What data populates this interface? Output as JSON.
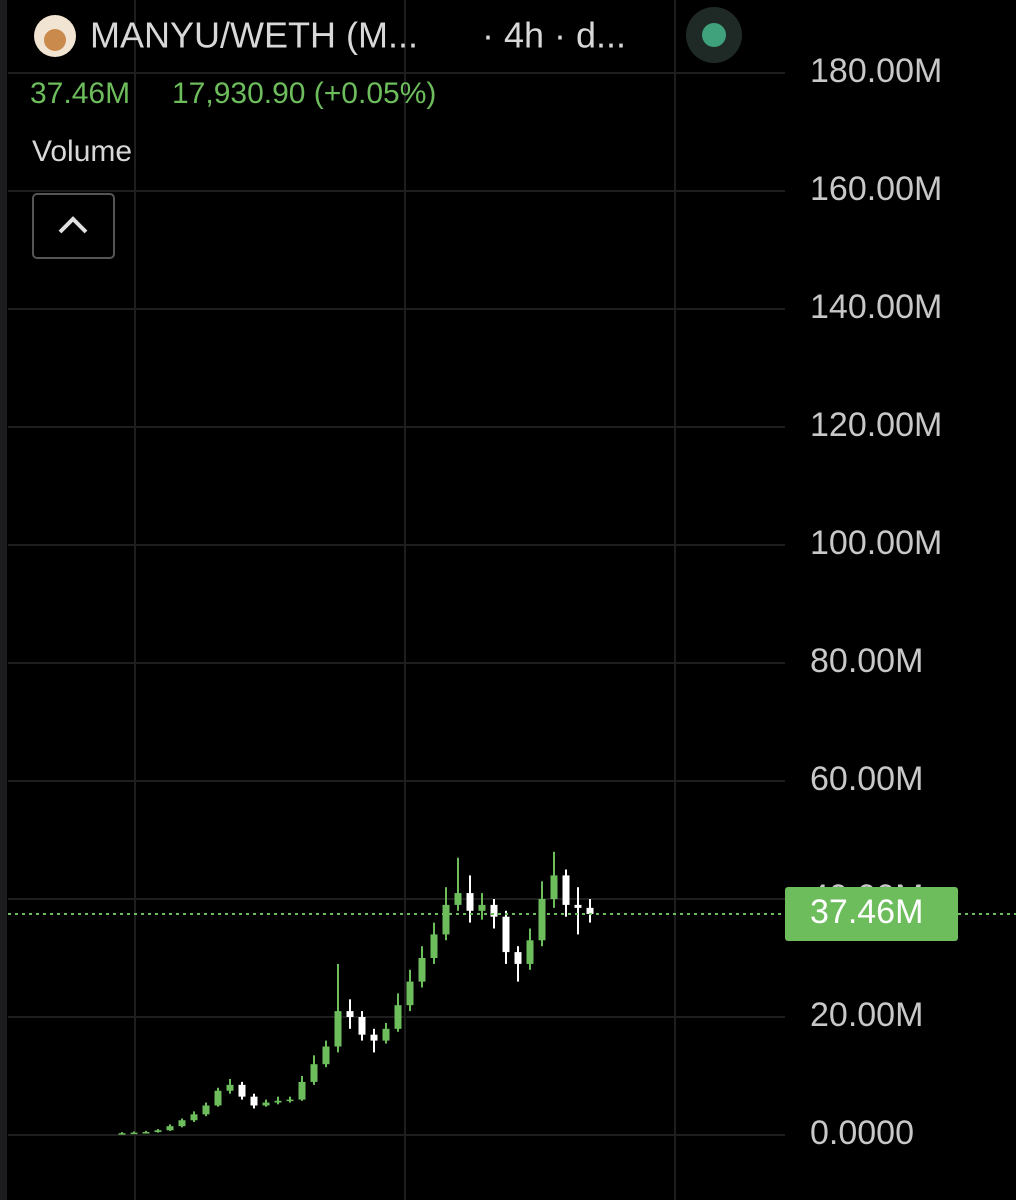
{
  "chart_data": {
    "type": "candlestick",
    "title": "MANYU/WETH (M...",
    "subtitle": "· 4h · d...",
    "header_value": "37.46M",
    "header_change": "17,930.90 (+0.05%)",
    "indicator": "Volume",
    "up_color": "#6dbd5c",
    "down_color": "#ffffff",
    "open": [
      0.3,
      0.3,
      0.4,
      0.5,
      0.8,
      1.5,
      2.5,
      3.5,
      5.0,
      7.5,
      8.5,
      6.5,
      5.0,
      5.5,
      5.8,
      6.0,
      9.0,
      12.0,
      15.0,
      21.0,
      20.0,
      17.0,
      16.0,
      18.0,
      22.0,
      26.0,
      30.0,
      34.0,
      39.0,
      41.0,
      38.0,
      39.0,
      37.0,
      31.0,
      29.0,
      33.0,
      40.0,
      44.0,
      39.0,
      38.5
    ],
    "high": [
      0.5,
      0.6,
      0.7,
      1.0,
      1.8,
      2.8,
      4.0,
      5.5,
      8.0,
      9.5,
      9.0,
      7.0,
      6.0,
      6.5,
      6.5,
      10.0,
      13.5,
      16.0,
      29.0,
      23.0,
      21.0,
      18.0,
      19.0,
      24.0,
      28.0,
      32.0,
      36.0,
      42.0,
      47.0,
      44.0,
      41.0,
      40.0,
      38.0,
      32.0,
      35.0,
      43.0,
      48.0,
      45.0,
      42.0,
      40.0
    ],
    "low": [
      0.2,
      0.2,
      0.3,
      0.4,
      0.7,
      1.3,
      2.2,
      3.2,
      4.8,
      7.0,
      6.0,
      4.5,
      4.8,
      5.2,
      5.5,
      5.8,
      8.5,
      11.5,
      14.0,
      18.0,
      16.0,
      14.0,
      15.5,
      17.5,
      21.0,
      25.0,
      29.0,
      33.0,
      38.0,
      36.0,
      36.5,
      35.0,
      29.0,
      26.0,
      28.0,
      32.0,
      38.5,
      37.0,
      34.0,
      36.0
    ],
    "close": [
      0.3,
      0.4,
      0.5,
      0.8,
      1.5,
      2.5,
      3.5,
      5.0,
      7.5,
      8.5,
      6.5,
      5.0,
      5.5,
      5.8,
      6.0,
      9.0,
      12.0,
      15.0,
      21.0,
      20.0,
      17.0,
      16.0,
      18.0,
      22.0,
      26.0,
      30.0,
      34.0,
      39.0,
      41.0,
      38.0,
      39.0,
      37.0,
      31.0,
      29.0,
      33.0,
      40.0,
      44.0,
      39.0,
      38.5,
      37.46
    ],
    "last_price": {
      "value": 37.46,
      "label": "37.46M"
    },
    "ylim": [
      0,
      180
    ],
    "yticks": [
      {
        "value": 0,
        "label": "0.0000"
      },
      {
        "value": 20,
        "label": "20.00M"
      },
      {
        "value": 40,
        "label": "40.00M"
      },
      {
        "value": 60,
        "label": "60.00M"
      },
      {
        "value": 80,
        "label": "80.00M"
      },
      {
        "value": 100,
        "label": "100.00M"
      },
      {
        "value": 120,
        "label": "120.00M"
      },
      {
        "value": 140,
        "label": "140.00M"
      },
      {
        "value": 160,
        "label": "160.00M"
      },
      {
        "value": 180,
        "label": "180.00M"
      }
    ],
    "grid": true
  }
}
